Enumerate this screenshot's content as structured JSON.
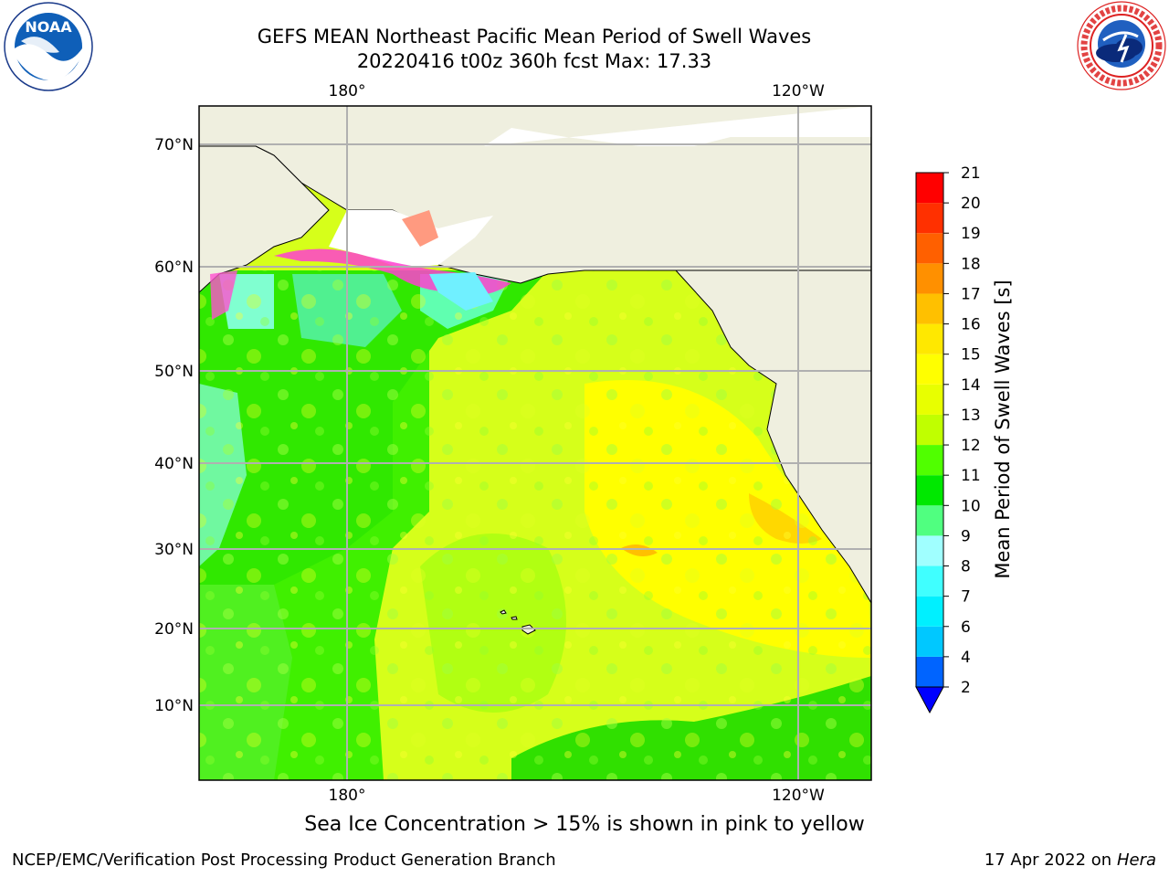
{
  "title": {
    "line1": "GEFS MEAN Northeast Pacific Mean Period of Swell Waves",
    "line2": "20220416 t00z 360h fcst   Max: 17.33"
  },
  "logos": {
    "left_text": "NOAA",
    "left_ring": "NATIONAL OCEANIC AND ATMOSPHERIC ADMINISTRATION · U.S. DEPARTMENT OF COMMERCE",
    "right_ring": "NATIONAL WEATHER SERVICE"
  },
  "chart_data": {
    "type": "heatmap",
    "variable": "Mean Period of Swell Waves",
    "units": "s",
    "colorbar_label": "Mean Period of Swell Waves [s]",
    "colorbar_levels": [
      2,
      4,
      6,
      7,
      8,
      9,
      10,
      11,
      12,
      13,
      14,
      15,
      16,
      17,
      18,
      19,
      20,
      21
    ],
    "colorbar_colors": [
      "#0064ff",
      "#00c8ff",
      "#00f0ff",
      "#40ffff",
      "#a0ffff",
      "#50ff80",
      "#00e800",
      "#50ff00",
      "#c0ff00",
      "#e8ff00",
      "#ffff00",
      "#ffe800",
      "#ffc000",
      "#ff9000",
      "#ff6000",
      "#ff3000",
      "#ff0000"
    ],
    "colorbar_extend_color": "#0000ff",
    "max_value": 17.33,
    "lat_ticks": [
      "70°N",
      "60°N",
      "50°N",
      "40°N",
      "30°N",
      "20°N",
      "10°N"
    ],
    "lon_ticks": [
      "180°",
      "120°W"
    ],
    "grid": true,
    "land_color": "#efefdf",
    "ice_note": "Sea Ice Concentration > 15% is shown in pink to yellow"
  },
  "footer": {
    "left": "NCEP/EMC/Verification Post Processing Product Generation Branch",
    "right_prefix": "17 Apr 2022 on ",
    "right_machine": "Hera"
  }
}
